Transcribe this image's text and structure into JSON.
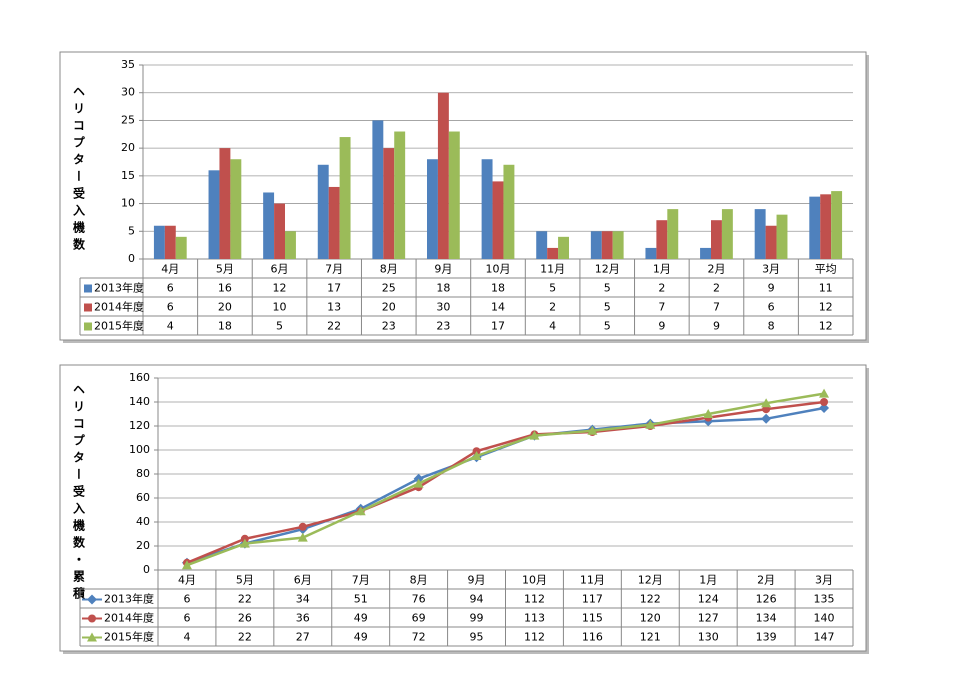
{
  "chart_data": [
    {
      "type": "bar",
      "y_label": "ヘリコプター受入機数",
      "categories": [
        "4月",
        "5月",
        "6月",
        "7月",
        "8月",
        "9月",
        "10月",
        "11月",
        "12月",
        "1月",
        "2月",
        "3月",
        "平均"
      ],
      "series": [
        {
          "name": "2013年度",
          "color": "#4f81bd",
          "values": [
            6,
            16,
            12,
            17,
            25,
            18,
            18,
            5,
            5,
            2,
            2,
            9,
            11.25
          ],
          "value_labels": [
            "6",
            "16",
            "12",
            "17",
            "25",
            "18",
            "18",
            "5",
            "5",
            "2",
            "2",
            "9",
            "11"
          ]
        },
        {
          "name": "2014年度",
          "color": "#c0504d",
          "values": [
            6,
            20,
            10,
            13,
            20,
            30,
            14,
            2,
            5,
            7,
            7,
            6,
            11.67
          ],
          "value_labels": [
            "6",
            "20",
            "10",
            "13",
            "20",
            "30",
            "14",
            "2",
            "5",
            "7",
            "7",
            "6",
            "12"
          ]
        },
        {
          "name": "2015年度",
          "color": "#9bbb59",
          "values": [
            4,
            18,
            5,
            22,
            23,
            23,
            17,
            4,
            5,
            9,
            9,
            8,
            12.25
          ],
          "value_labels": [
            "4",
            "18",
            "5",
            "22",
            "23",
            "23",
            "17",
            "4",
            "5",
            "9",
            "9",
            "8",
            "12"
          ]
        }
      ],
      "ylim": [
        0,
        35
      ],
      "yticks": [
        0,
        5,
        10,
        15,
        20,
        25,
        30,
        35
      ],
      "grid": true
    },
    {
      "type": "line",
      "y_label": "ヘリコプター受入機数・累積",
      "categories": [
        "4月",
        "5月",
        "6月",
        "7月",
        "8月",
        "9月",
        "10月",
        "11月",
        "12月",
        "1月",
        "2月",
        "3月"
      ],
      "series": [
        {
          "name": "2013年度",
          "color": "#4f81bd",
          "marker": "diamond",
          "values": [
            6,
            22,
            34,
            51,
            76,
            94,
            112,
            117,
            122,
            124,
            126,
            135
          ]
        },
        {
          "name": "2014年度",
          "color": "#c0504d",
          "marker": "circle",
          "values": [
            6,
            26,
            36,
            49,
            69,
            99,
            113,
            115,
            120,
            127,
            134,
            140
          ]
        },
        {
          "name": "2015年度",
          "color": "#9bbb59",
          "marker": "triangle",
          "values": [
            4,
            22,
            27,
            49,
            72,
            95,
            112,
            116,
            121,
            130,
            139,
            147
          ]
        }
      ],
      "ylim": [
        0,
        160
      ],
      "yticks": [
        0,
        20,
        40,
        60,
        80,
        100,
        120,
        140,
        160
      ],
      "grid": true
    }
  ]
}
